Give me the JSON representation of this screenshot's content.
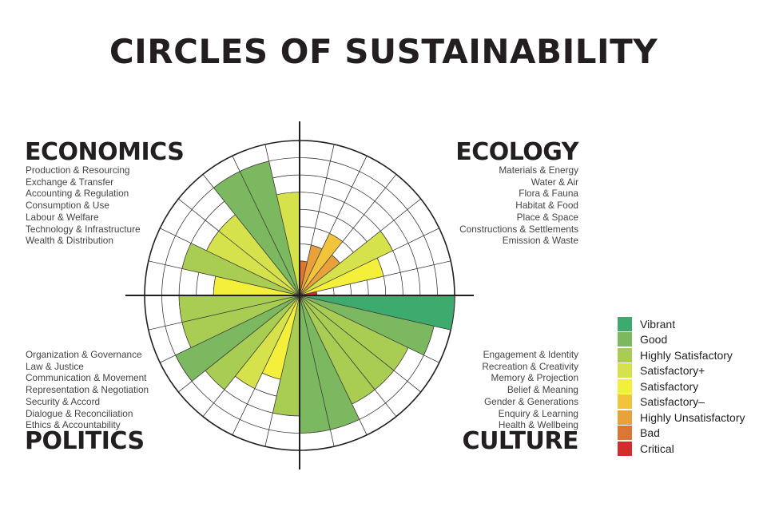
{
  "title": "CIRCLES OF SUSTAINABILITY",
  "quadrants": {
    "economics": {
      "title": "ECONOMICS",
      "items": [
        "Production & Resourcing",
        "Exchange & Transfer",
        "Accounting & Regulation",
        "Consumption & Use",
        "Labour & Welfare",
        "Technology & Infrastructure",
        "Wealth & Distribution"
      ]
    },
    "ecology": {
      "title": "ECOLOGY",
      "items": [
        "Materials & Energy",
        "Water & Air",
        "Flora & Fauna",
        "Habitat & Food",
        "Place & Space",
        "Constructions & Settlements",
        "Emission & Waste"
      ]
    },
    "politics": {
      "title": "POLITICS",
      "items": [
        "Organization & Governance",
        "Law & Justice",
        "Communication & Movement",
        "Representation & Negotiation",
        "Security & Accord",
        "Dialogue & Reconciliation",
        "Ethics & Accountability"
      ]
    },
    "culture": {
      "title": "CULTURE",
      "items": [
        "Engagement & Identity",
        "Recreation & Creativity",
        "Memory & Projection",
        "Belief & Meaning",
        "Gender & Generations",
        "Enquiry & Learning",
        "Health & Wellbeing"
      ]
    }
  },
  "legend": [
    {
      "label": "Vibrant",
      "color": "#3daa6e"
    },
    {
      "label": "Good",
      "color": "#7cb85f"
    },
    {
      "label": "Highly Satisfactory",
      "color": "#a9cd52"
    },
    {
      "label": "Satisfactory+",
      "color": "#d6e24c"
    },
    {
      "label": "Satisfactory",
      "color": "#f4ef3b"
    },
    {
      "label": "Satisfactory–",
      "color": "#f2c43c"
    },
    {
      "label": "Highly Unsatisfactory",
      "color": "#e9a23a"
    },
    {
      "label": "Bad",
      "color": "#dc7634"
    },
    {
      "label": "Critical",
      "color": "#d22c2c"
    }
  ],
  "chart_data": {
    "type": "polar-area",
    "scale_max": 9,
    "levels": [
      "Critical",
      "Bad",
      "Highly Unsatisfactory",
      "Satisfactory–",
      "Satisfactory",
      "Satisfactory+",
      "Highly Satisfactory",
      "Good",
      "Vibrant"
    ],
    "segments": [
      {
        "domain": "Ecology",
        "label": "Materials & Energy",
        "value": 2
      },
      {
        "domain": "Ecology",
        "label": "Water & Air",
        "value": 3
      },
      {
        "domain": "Ecology",
        "label": "Flora & Fauna",
        "value": 4
      },
      {
        "domain": "Ecology",
        "label": "Habitat & Food",
        "value": 3
      },
      {
        "domain": "Ecology",
        "label": "Place & Space",
        "value": 6
      },
      {
        "domain": "Ecology",
        "label": "Constructions & Settlements",
        "value": 5
      },
      {
        "domain": "Ecology",
        "label": "Emission & Waste",
        "value": 1
      },
      {
        "domain": "Culture",
        "label": "Engagement & Identity",
        "value": 9
      },
      {
        "domain": "Culture",
        "label": "Recreation & Creativity",
        "value": 8
      },
      {
        "domain": "Culture",
        "label": "Memory & Projection",
        "value": 7
      },
      {
        "domain": "Culture",
        "label": "Belief & Meaning",
        "value": 7
      },
      {
        "domain": "Culture",
        "label": "Gender & Generations",
        "value": 7
      },
      {
        "domain": "Culture",
        "label": "Enquiry & Learning",
        "value": 8
      },
      {
        "domain": "Culture",
        "label": "Health & Wellbeing",
        "value": 8
      },
      {
        "domain": "Politics",
        "label": "Organization & Governance",
        "value": 7
      },
      {
        "domain": "Politics",
        "label": "Law & Justice",
        "value": 5
      },
      {
        "domain": "Politics",
        "label": "Communication & Movement",
        "value": 6
      },
      {
        "domain": "Politics",
        "label": "Representation & Negotiation",
        "value": 7
      },
      {
        "domain": "Politics",
        "label": "Security & Accord",
        "value": 8
      },
      {
        "domain": "Politics",
        "label": "Dialogue & Reconciliation",
        "value": 7
      },
      {
        "domain": "Politics",
        "label": "Ethics & Accountability",
        "value": 7
      },
      {
        "domain": "Economics",
        "label": "Production & Resourcing",
        "value": 5
      },
      {
        "domain": "Economics",
        "label": "Exchange & Transfer",
        "value": 7
      },
      {
        "domain": "Economics",
        "label": "Accounting & Regulation",
        "value": 6
      },
      {
        "domain": "Economics",
        "label": "Consumption & Use",
        "value": 6
      },
      {
        "domain": "Economics",
        "label": "Labour & Welfare",
        "value": 8
      },
      {
        "domain": "Economics",
        "label": "Technology & Infrastructure",
        "value": 8
      },
      {
        "domain": "Economics",
        "label": "Wealth & Distribution",
        "value": 6
      }
    ]
  }
}
